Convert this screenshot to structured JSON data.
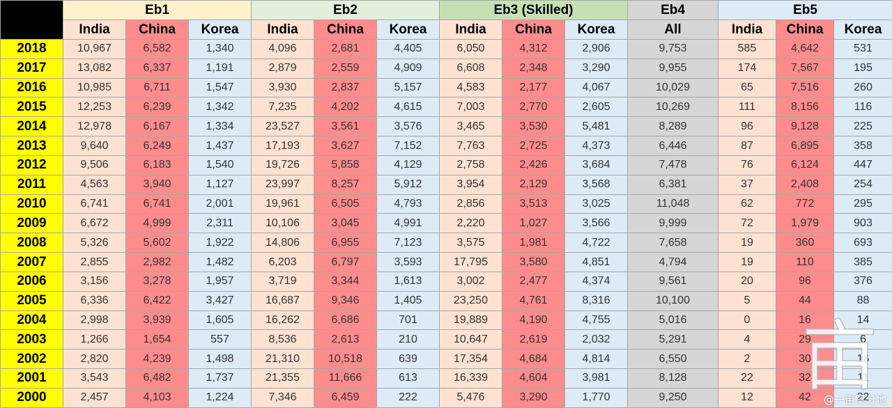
{
  "chart_data": {
    "type": "table",
    "groups": [
      {
        "name": "Eb1",
        "columns": [
          "India",
          "China",
          "Korea"
        ]
      },
      {
        "name": "Eb2",
        "columns": [
          "India",
          "China",
          "Korea"
        ]
      },
      {
        "name": "Eb3 (Skilled)",
        "columns": [
          "India",
          "China",
          "Korea"
        ]
      },
      {
        "name": "Eb4",
        "columns": [
          "All"
        ]
      },
      {
        "name": "Eb5",
        "columns": [
          "India",
          "China",
          "Korea"
        ]
      }
    ],
    "rows": [
      {
        "year": "2018",
        "values": [
          "10,967",
          "6,582",
          "1,340",
          "4,096",
          "2,681",
          "4,405",
          "6,050",
          "4,312",
          "2,906",
          "9,753",
          "585",
          "4,642",
          "531"
        ]
      },
      {
        "year": "2017",
        "values": [
          "13,082",
          "6,337",
          "1,191",
          "2,879",
          "2,559",
          "4,909",
          "6,608",
          "2,348",
          "3,290",
          "9,955",
          "174",
          "7,567",
          "195"
        ]
      },
      {
        "year": "2016",
        "values": [
          "10,985",
          "6,711",
          "1,547",
          "3,930",
          "2,837",
          "5,157",
          "4,583",
          "2,177",
          "4,067",
          "10,029",
          "65",
          "7,516",
          "260"
        ]
      },
      {
        "year": "2015",
        "values": [
          "12,253",
          "6,239",
          "1,342",
          "7,235",
          "4,202",
          "4,615",
          "7,003",
          "2,770",
          "2,605",
          "10,269",
          "111",
          "8,156",
          "116"
        ]
      },
      {
        "year": "2014",
        "values": [
          "12,978",
          "6,167",
          "1,334",
          "23,527",
          "3,561",
          "3,576",
          "3,465",
          "3,530",
          "5,481",
          "8,289",
          "96",
          "9,128",
          "225"
        ]
      },
      {
        "year": "2013",
        "values": [
          "9,640",
          "6,249",
          "1,437",
          "17,193",
          "3,627",
          "7,152",
          "7,763",
          "2,725",
          "4,373",
          "6,446",
          "87",
          "6,895",
          "358"
        ]
      },
      {
        "year": "2012",
        "values": [
          "9,506",
          "6,183",
          "1,540",
          "19,726",
          "5,858",
          "4,129",
          "2,758",
          "2,426",
          "3,684",
          "7,478",
          "76",
          "6,124",
          "447"
        ]
      },
      {
        "year": "2011",
        "values": [
          "4,563",
          "3,940",
          "1,127",
          "23,997",
          "8,257",
          "5,912",
          "3,954",
          "2,129",
          "3,568",
          "6,381",
          "37",
          "2,408",
          "254"
        ]
      },
      {
        "year": "2010",
        "values": [
          "6,741",
          "6,741",
          "2,001",
          "19,961",
          "6,505",
          "4,793",
          "2,856",
          "3,513",
          "3,025",
          "11,048",
          "62",
          "772",
          "295"
        ]
      },
      {
        "year": "2009",
        "values": [
          "6,672",
          "4,999",
          "2,311",
          "10,106",
          "3,045",
          "4,991",
          "2,220",
          "1,027",
          "3,566",
          "9,999",
          "72",
          "1,979",
          "903"
        ]
      },
      {
        "year": "2008",
        "values": [
          "5,326",
          "5,602",
          "1,922",
          "14,806",
          "6,955",
          "7,123",
          "3,575",
          "1,981",
          "4,722",
          "7,658",
          "19",
          "360",
          "693"
        ]
      },
      {
        "year": "2007",
        "values": [
          "2,855",
          "2,982",
          "1,482",
          "6,203",
          "6,797",
          "3,593",
          "17,795",
          "3,580",
          "4,851",
          "4,794",
          "19",
          "110",
          "385"
        ]
      },
      {
        "year": "2006",
        "values": [
          "3,156",
          "3,278",
          "1,957",
          "3,719",
          "3,344",
          "1,613",
          "3,002",
          "2,477",
          "4,374",
          "9,561",
          "20",
          "96",
          "376"
        ]
      },
      {
        "year": "2005",
        "values": [
          "6,336",
          "6,422",
          "3,427",
          "16,687",
          "9,346",
          "1,405",
          "23,250",
          "4,761",
          "8,316",
          "10,100",
          "5",
          "44",
          "88"
        ]
      },
      {
        "year": "2004",
        "values": [
          "2,998",
          "3,939",
          "1,605",
          "16,262",
          "6,686",
          "701",
          "19,889",
          "4,190",
          "4,755",
          "5,016",
          "0",
          "16",
          "14"
        ]
      },
      {
        "year": "2003",
        "values": [
          "1,266",
          "1,654",
          "557",
          "8,536",
          "2,613",
          "210",
          "10,647",
          "2,619",
          "2,032",
          "5,291",
          "4",
          "29",
          "6"
        ]
      },
      {
        "year": "2002",
        "values": [
          "2,820",
          "4,239",
          "1,498",
          "21,310",
          "10,518",
          "639",
          "17,354",
          "4,684",
          "4,814",
          "6,550",
          "2",
          "30",
          "16"
        ]
      },
      {
        "year": "2001",
        "values": [
          "3,543",
          "6,482",
          "1,737",
          "21,355",
          "11,666",
          "613",
          "16,339",
          "4,604",
          "3,981",
          "8,128",
          "22",
          "32",
          "11"
        ]
      },
      {
        "year": "2000",
        "values": [
          "2,457",
          "4,103",
          "1,224",
          "7,346",
          "6,459",
          "222",
          "5,476",
          "3,290",
          "1,770",
          "9,250",
          "12",
          "42",
          "22"
        ]
      }
    ],
    "colors": {
      "year_cell": "#ffff00",
      "india": "#fde2d2",
      "china": "#ff8c8c",
      "korea": "#ddebf7",
      "all": "#d6d6d6",
      "eb1_header": "#fff2cc",
      "eb2_header": "#e2efda",
      "eb3_header": "#c6e0b4",
      "eb4_header": "#d6d6d6",
      "eb5_header": "#ddebf7"
    }
  },
  "watermark": {
    "text": "@一亩三分地",
    "logo_text": "亩"
  }
}
